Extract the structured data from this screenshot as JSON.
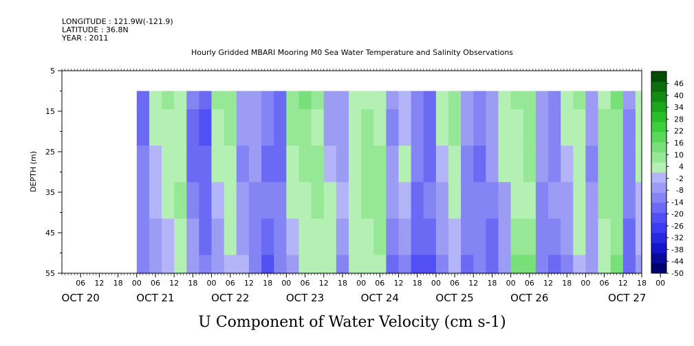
{
  "header": {
    "longitude": "LONGITUDE : 121.9W(-121.9)",
    "latitude": "LATITUDE : 36.8N",
    "year": "YEAR : 2011"
  },
  "chart_data": {
    "type": "heatmap",
    "title": "Hourly Gridded MBARI Mooring M0 Sea Water Temperature and Salinity Observations",
    "xlabel": "U Component of Water Velocity (cm s-1)",
    "ylabel": "DEPTH (m)",
    "ylim": [
      5,
      55
    ],
    "y_inverted": true,
    "y_ticks": [
      5,
      15,
      25,
      35,
      45,
      55
    ],
    "x_range": [
      "2011-10-19T12:00",
      "2011-10-27T06:00"
    ],
    "data_start": "2011-10-20T12:00",
    "depth_range": [
      10,
      55
    ],
    "x_hour_ticks": [
      "06",
      "12",
      "18",
      "00",
      "06",
      "12",
      "18",
      "00",
      "06",
      "12",
      "18",
      "00",
      "06",
      "12",
      "18",
      "00",
      "06",
      "12",
      "18",
      "00",
      "06",
      "12",
      "18",
      "00",
      "06",
      "12",
      "18",
      "00",
      "06",
      "12",
      "18",
      "00"
    ],
    "x_day_labels": [
      "OCT 20",
      "OCT 21",
      "OCT 22",
      "OCT 23",
      "OCT 24",
      "OCT 25",
      "OCT 26",
      "OCT 27"
    ],
    "colorbar": {
      "levels": [
        -50,
        -44,
        -38,
        -32,
        -26,
        -20,
        -14,
        -8,
        -2,
        4,
        10,
        16,
        22,
        28,
        34,
        40,
        46
      ],
      "colors_negative": [
        "#000070",
        "#0a0a9a",
        "#1414c8",
        "#2828e0",
        "#3c3cf0",
        "#5050f4",
        "#6a6af4",
        "#8484f4",
        "#9c9cf4",
        "#b4b4f8"
      ],
      "colors_positive": [
        "#b4f0b4",
        "#96e896",
        "#78e078",
        "#5ad85a",
        "#3cd03c",
        "#28c028",
        "#1ca81c",
        "#148c14",
        "#0c6e0c",
        "#044c04"
      ]
    },
    "profile_columns": [
      {
        "t": "2011-10-20T12:00",
        "u": [
          -18,
          -16,
          -14,
          -12,
          -10,
          -10
        ]
      },
      {
        "t": "2011-10-20T16:00",
        "u": [
          6,
          4,
          2,
          0,
          -4,
          -8
        ]
      },
      {
        "t": "2011-10-20T20:00",
        "u": [
          10,
          8,
          6,
          4,
          2,
          -2
        ]
      },
      {
        "t": "2011-10-21T00:00",
        "u": [
          4,
          6,
          8,
          10,
          8,
          6
        ]
      },
      {
        "t": "2011-10-21T04:00",
        "u": [
          -14,
          -16,
          -18,
          -12,
          -8,
          -6
        ]
      },
      {
        "t": "2011-10-21T08:00",
        "u": [
          -20,
          -22,
          -20,
          -18,
          -16,
          -14
        ]
      },
      {
        "t": "2011-10-21T12:00",
        "u": [
          10,
          8,
          6,
          2,
          -4,
          -8
        ]
      },
      {
        "t": "2011-10-21T16:00",
        "u": [
          14,
          12,
          8,
          6,
          4,
          2
        ]
      },
      {
        "t": "2011-10-21T20:00",
        "u": [
          -6,
          -8,
          -10,
          -8,
          -4,
          2
        ]
      },
      {
        "t": "2011-10-22T00:00",
        "u": [
          -4,
          -6,
          -8,
          -10,
          -12,
          -14
        ]
      },
      {
        "t": "2011-10-22T04:00",
        "u": [
          -12,
          -14,
          -16,
          -14,
          -18,
          -22
        ]
      },
      {
        "t": "2011-10-22T08:00",
        "u": [
          -16,
          -18,
          -16,
          -14,
          -12,
          -10
        ]
      },
      {
        "t": "2011-10-22T12:00",
        "u": [
          12,
          10,
          8,
          6,
          2,
          -4
        ]
      },
      {
        "t": "2011-10-22T16:00",
        "u": [
          16,
          14,
          12,
          8,
          6,
          4
        ]
      },
      {
        "t": "2011-10-22T20:00",
        "u": [
          10,
          8,
          10,
          12,
          8,
          6
        ]
      },
      {
        "t": "2011-10-23T00:00",
        "u": [
          -4,
          -6,
          2,
          4,
          6,
          4
        ]
      },
      {
        "t": "2011-10-23T04:00",
        "u": [
          -8,
          -6,
          -4,
          -2,
          -6,
          -10
        ]
      },
      {
        "t": "2011-10-23T08:00",
        "u": [
          6,
          4,
          6,
          8,
          6,
          4
        ]
      },
      {
        "t": "2011-10-23T12:00",
        "u": [
          8,
          10,
          12,
          10,
          8,
          6
        ]
      },
      {
        "t": "2011-10-23T16:00",
        "u": [
          4,
          6,
          10,
          14,
          10,
          8
        ]
      },
      {
        "t": "2011-10-23T20:00",
        "u": [
          -8,
          -10,
          -6,
          -4,
          -10,
          -16
        ]
      },
      {
        "t": "2011-10-24T00:00",
        "u": [
          -2,
          2,
          4,
          -2,
          -6,
          -12
        ]
      },
      {
        "t": "2011-10-24T04:00",
        "u": [
          -10,
          -12,
          -14,
          -16,
          -20,
          -26
        ]
      },
      {
        "t": "2011-10-24T08:00",
        "u": [
          -20,
          -18,
          -16,
          -14,
          -18,
          -24
        ]
      },
      {
        "t": "2011-10-24T12:00",
        "u": [
          6,
          4,
          2,
          -4,
          -8,
          -10
        ]
      },
      {
        "t": "2011-10-24T16:00",
        "u": [
          12,
          10,
          6,
          4,
          2,
          -2
        ]
      },
      {
        "t": "2011-10-24T20:00",
        "u": [
          -6,
          -8,
          -10,
          -12,
          -14,
          -16
        ]
      },
      {
        "t": "2011-10-25T00:00",
        "u": [
          -12,
          -14,
          -16,
          -12,
          -10,
          -12
        ]
      },
      {
        "t": "2011-10-25T04:00",
        "u": [
          -4,
          -6,
          -8,
          -10,
          -16,
          -20
        ]
      },
      {
        "t": "2011-10-25T08:00",
        "u": [
          8,
          6,
          4,
          -4,
          -8,
          -6
        ]
      },
      {
        "t": "2011-10-25T12:00",
        "u": [
          10,
          8,
          6,
          8,
          12,
          16
        ]
      },
      {
        "t": "2011-10-25T16:00",
        "u": [
          14,
          12,
          10,
          8,
          14,
          18
        ]
      },
      {
        "t": "2011-10-25T20:00",
        "u": [
          -4,
          -6,
          -8,
          -10,
          -12,
          -14
        ]
      },
      {
        "t": "2011-10-26T00:00",
        "u": [
          -10,
          -12,
          -10,
          -8,
          -14,
          -18
        ]
      },
      {
        "t": "2011-10-26T04:00",
        "u": [
          6,
          4,
          2,
          -4,
          -8,
          -10
        ]
      },
      {
        "t": "2011-10-26T08:00",
        "u": [
          10,
          8,
          6,
          8,
          4,
          2
        ]
      },
      {
        "t": "2011-10-26T12:00",
        "u": [
          -6,
          -8,
          -10,
          -6,
          -4,
          -8
        ]
      },
      {
        "t": "2011-10-26T16:00",
        "u": [
          8,
          10,
          12,
          10,
          8,
          6
        ]
      },
      {
        "t": "2011-10-26T20:00",
        "u": [
          16,
          14,
          12,
          10,
          14,
          18
        ]
      },
      {
        "t": "2011-10-27T00:00",
        "u": [
          -6,
          -10,
          -12,
          -14,
          -16,
          -18
        ]
      },
      {
        "t": "2011-10-27T04:00",
        "u": [
          8,
          6,
          4,
          2,
          -2,
          -4
        ]
      }
    ],
    "profile_depths": [
      10,
      19,
      28,
      37,
      46,
      55
    ]
  }
}
